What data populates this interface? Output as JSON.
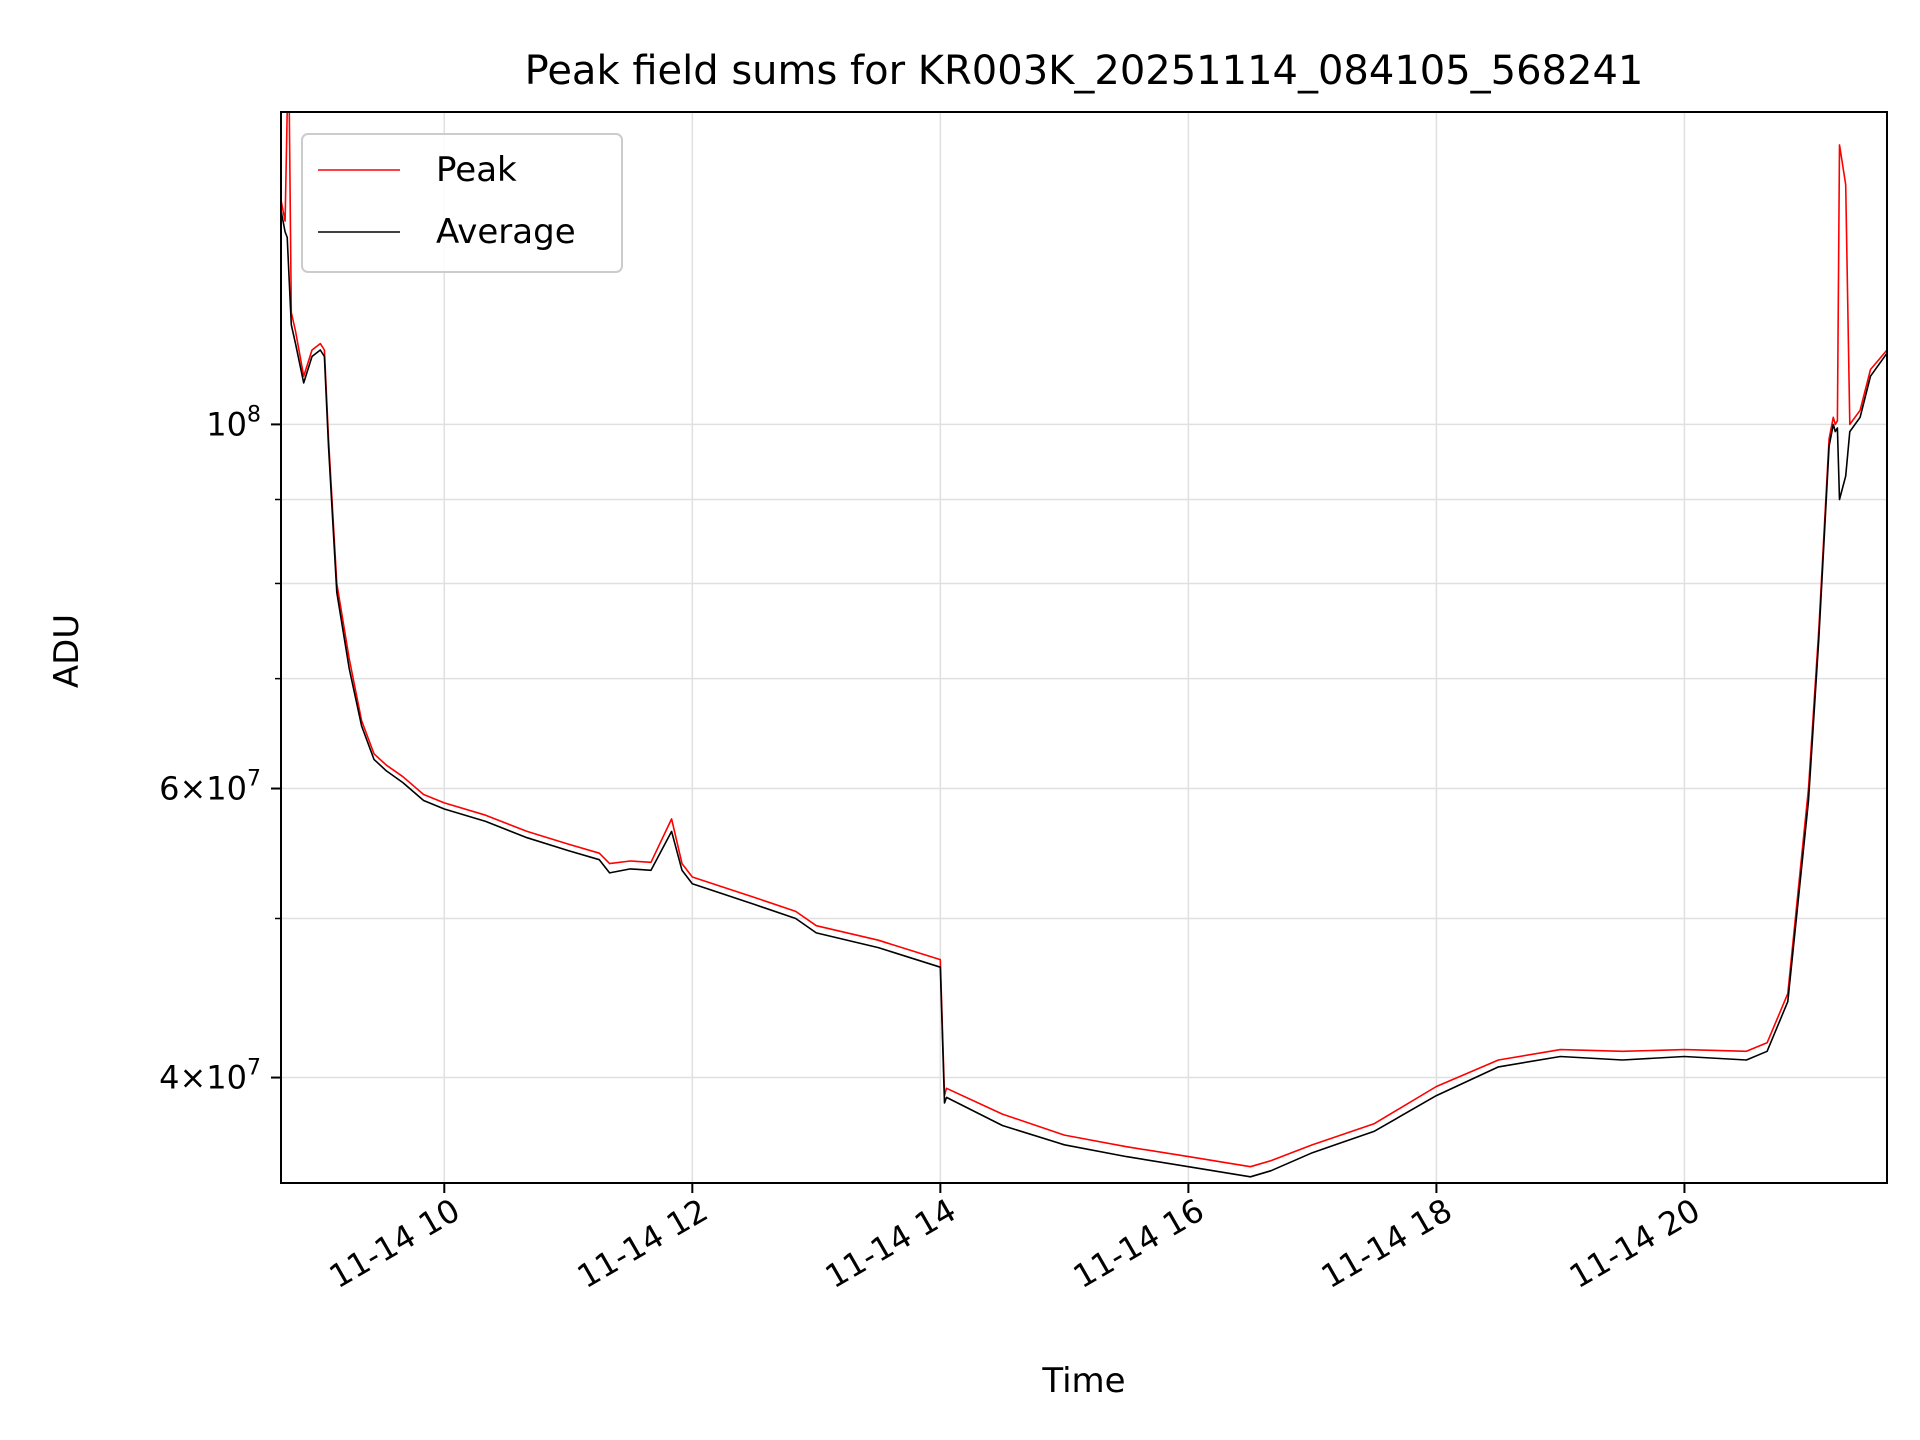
{
  "chart_data": {
    "type": "line",
    "title": "Peak field sums for KR003K_20251114_084105_568241",
    "xlabel": "Time",
    "ylabel": "ADU",
    "x_tick_labels": [
      "11-14 10",
      "11-14 12",
      "11-14 14",
      "11-14 16",
      "11-14 18",
      "11-14 20"
    ],
    "x_ticks": [
      "2025-11-14 10:00",
      "2025-11-14 12:00",
      "2025-11-14 14:00",
      "2025-11-14 16:00",
      "2025-11-14 18:00",
      "2025-11-14 20:00"
    ],
    "xlim": [
      "2025-11-14 08:41",
      "2025-11-14 21:38"
    ],
    "y_scale": "log",
    "ylim": [
      34500000,
      155000000
    ],
    "y_tick_labels": [
      "10^8",
      "6×10^7",
      "4×10^7"
    ],
    "y_ticks": [
      100000000,
      60000000,
      40000000
    ],
    "y_minor_ticks": [
      90000000,
      80000000,
      70000000,
      50000000
    ],
    "grid": true,
    "legend_position": "upper-left",
    "series": [
      {
        "name": "Peak",
        "color": "#ff0000",
        "x": [
          "08:41",
          "08:43",
          "08:44",
          "08:45",
          "08:46",
          "08:48",
          "08:52",
          "08:56",
          "09:00",
          "09:02",
          "09:04",
          "09:08",
          "09:14",
          "09:20",
          "09:26",
          "09:32",
          "09:40",
          "09:50",
          "10:00",
          "10:20",
          "10:40",
          "11:00",
          "11:15",
          "11:20",
          "11:30",
          "11:40",
          "11:50",
          "11:55",
          "12:00",
          "12:30",
          "12:50",
          "13:00",
          "13:30",
          "14:00",
          "14:02",
          "14:03",
          "14:30",
          "15:00",
          "15:30",
          "16:00",
          "16:30",
          "16:40",
          "17:00",
          "17:30",
          "18:00",
          "18:30",
          "19:00",
          "19:30",
          "20:00",
          "20:30",
          "20:40",
          "20:50",
          "21:00",
          "21:05",
          "21:10",
          "21:12",
          "21:13",
          "21:14",
          "21:15",
          "21:18",
          "21:20",
          "21:25",
          "21:30",
          "21:38"
        ],
        "values": [
          137000000,
          133000000,
          155000000,
          155000000,
          117000000,
          114000000,
          107000000,
          111000000,
          112000000,
          111000000,
          98000000,
          80000000,
          72000000,
          66000000,
          63000000,
          62000000,
          61000000,
          59500000,
          58800000,
          57800000,
          56500000,
          55500000,
          54800000,
          54000000,
          54200000,
          54100000,
          57500000,
          54000000,
          53000000,
          51500000,
          50500000,
          49500000,
          48500000,
          47200000,
          39000000,
          39400000,
          38000000,
          36900000,
          36300000,
          35800000,
          35300000,
          35600000,
          36400000,
          37500000,
          39500000,
          41000000,
          41600000,
          41500000,
          41600000,
          41500000,
          42000000,
          45000000,
          60000000,
          75000000,
          98000000,
          101000000,
          100000000,
          100500000,
          148000000,
          140000000,
          100000000,
          102000000,
          108000000,
          111000000
        ]
      },
      {
        "name": "Average",
        "color": "#000000",
        "x": [
          "08:41",
          "08:43",
          "08:44",
          "08:46",
          "08:48",
          "08:52",
          "08:56",
          "09:00",
          "09:02",
          "09:04",
          "09:08",
          "09:14",
          "09:20",
          "09:26",
          "09:32",
          "09:40",
          "09:50",
          "10:00",
          "10:20",
          "10:40",
          "11:00",
          "11:15",
          "11:20",
          "11:30",
          "11:40",
          "11:50",
          "11:55",
          "12:00",
          "12:30",
          "12:50",
          "13:00",
          "13:30",
          "14:00",
          "14:02",
          "14:03",
          "14:30",
          "15:00",
          "15:30",
          "16:00",
          "16:30",
          "16:40",
          "17:00",
          "17:30",
          "18:00",
          "18:30",
          "19:00",
          "19:30",
          "20:00",
          "20:30",
          "20:40",
          "20:50",
          "21:00",
          "21:05",
          "21:10",
          "21:12",
          "21:13",
          "21:14",
          "21:15",
          "21:18",
          "21:20",
          "21:25",
          "21:30",
          "21:38"
        ],
        "values": [
          135000000,
          131000000,
          130000000,
          115000000,
          112000000,
          106000000,
          110000000,
          111000000,
          110000000,
          97000000,
          79000000,
          71000000,
          65500000,
          62500000,
          61500000,
          60500000,
          59000000,
          58300000,
          57300000,
          56000000,
          55000000,
          54300000,
          53300000,
          53600000,
          53500000,
          56500000,
          53500000,
          52500000,
          51000000,
          50000000,
          49000000,
          48000000,
          46700000,
          38600000,
          38900000,
          37400000,
          36400000,
          35800000,
          35300000,
          34800000,
          35100000,
          36000000,
          37100000,
          39000000,
          40600000,
          41200000,
          41000000,
          41200000,
          41000000,
          41500000,
          44500000,
          59000000,
          74000000,
          97000000,
          100000000,
          99000000,
          99500000,
          90000000,
          93000000,
          99000000,
          101000000,
          107000000,
          110500000
        ]
      }
    ]
  }
}
